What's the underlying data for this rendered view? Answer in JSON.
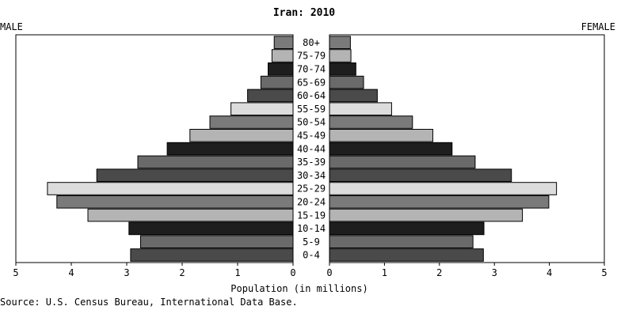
{
  "chart_data": {
    "type": "bar",
    "orientation": "horizontal",
    "layout": "population-pyramid",
    "title": "Iran: 2010",
    "left_label": "MALE",
    "right_label": "FEMALE",
    "xlabel": "Population (in millions)",
    "source": "Source: U.S. Census Bureau, International Data Base.",
    "xlim": [
      0,
      5
    ],
    "x_ticks": [
      "0",
      "1",
      "2",
      "3",
      "4",
      "5"
    ],
    "categories": [
      "0-4",
      "5-9",
      "10-14",
      "15-19",
      "20-24",
      "25-29",
      "30-34",
      "35-39",
      "40-44",
      "45-49",
      "50-54",
      "55-59",
      "60-64",
      "65-69",
      "70-74",
      "75-79",
      "80+"
    ],
    "series": [
      {
        "name": "MALE",
        "values": [
          2.93,
          2.75,
          2.96,
          3.7,
          4.26,
          4.43,
          3.54,
          2.8,
          2.27,
          1.86,
          1.5,
          1.12,
          0.82,
          0.58,
          0.45,
          0.38,
          0.34
        ]
      },
      {
        "name": "FEMALE",
        "values": [
          2.8,
          2.61,
          2.81,
          3.51,
          3.99,
          4.13,
          3.31,
          2.65,
          2.23,
          1.88,
          1.51,
          1.13,
          0.87,
          0.62,
          0.48,
          0.39,
          0.38
        ]
      }
    ],
    "colors": [
      "#4a4a4a",
      "#6a6a6a",
      "#1e1e1e",
      "#b4b4b4",
      "#7a7a7a",
      "#dcdcdc",
      "#4a4a4a",
      "#6a6a6a",
      "#1e1e1e",
      "#b4b4b4",
      "#7a7a7a",
      "#dcdcdc",
      "#4a4a4a",
      "#6a6a6a",
      "#1e1e1e",
      "#b4b4b4",
      "#7a7a7a"
    ],
    "grid": false
  }
}
